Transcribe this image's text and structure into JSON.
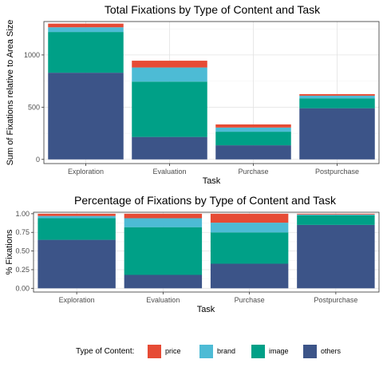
{
  "chart_data": [
    {
      "type": "bar",
      "stacked": true,
      "title": "Total Fixations by Type of Content and Task",
      "xlabel": "Task",
      "ylabel": "Sum of Fixations relative to Area Size",
      "categories": [
        "Exploration",
        "Evaluation",
        "Purchase",
        "Postpurchase"
      ],
      "ylim": [
        -40,
        1320
      ],
      "yticks": [
        0,
        500,
        1000
      ],
      "ytick_labels": [
        "0",
        "500",
        "1000"
      ],
      "grid": true,
      "series": [
        {
          "name": "others",
          "values": [
            830,
            215,
            135,
            490
          ]
        },
        {
          "name": "image",
          "values": [
            390,
            530,
            130,
            95
          ]
        },
        {
          "name": "brand",
          "values": [
            45,
            135,
            40,
            25
          ]
        },
        {
          "name": "price",
          "values": [
            35,
            65,
            30,
            15
          ]
        }
      ]
    },
    {
      "type": "bar",
      "stacked": true,
      "title": "Percentage of Fixations by Type of Content and Task",
      "xlabel": "Task",
      "ylabel": "% Fixations",
      "categories": [
        "Exploration",
        "Evaluation",
        "Purchase",
        "Postpurchase"
      ],
      "ylim": [
        -0.05,
        1.02
      ],
      "yticks": [
        0,
        0.25,
        0.5,
        0.75,
        1.0
      ],
      "ytick_labels": [
        "0.00",
        "0.25",
        "0.50",
        "0.75",
        "1.00"
      ],
      "grid": true,
      "series": [
        {
          "name": "others",
          "values": [
            0.65,
            0.18,
            0.33,
            0.85
          ]
        },
        {
          "name": "image",
          "values": [
            0.29,
            0.64,
            0.42,
            0.13
          ]
        },
        {
          "name": "brand",
          "values": [
            0.03,
            0.12,
            0.13,
            0.01
          ]
        },
        {
          "name": "price",
          "values": [
            0.03,
            0.06,
            0.12,
            0.01
          ]
        }
      ]
    }
  ],
  "legend": {
    "title": "Type of Content:",
    "placement": "bottom",
    "items": [
      {
        "label": "price",
        "color": "#E64B35"
      },
      {
        "label": "brand",
        "color": "#4DBBD5"
      },
      {
        "label": "image",
        "color": "#00A087"
      },
      {
        "label": "others",
        "color": "#3C5488"
      }
    ]
  },
  "colors": {
    "others": "#3C5488",
    "image": "#00A087",
    "brand": "#4DBBD5",
    "price": "#E64B35"
  }
}
